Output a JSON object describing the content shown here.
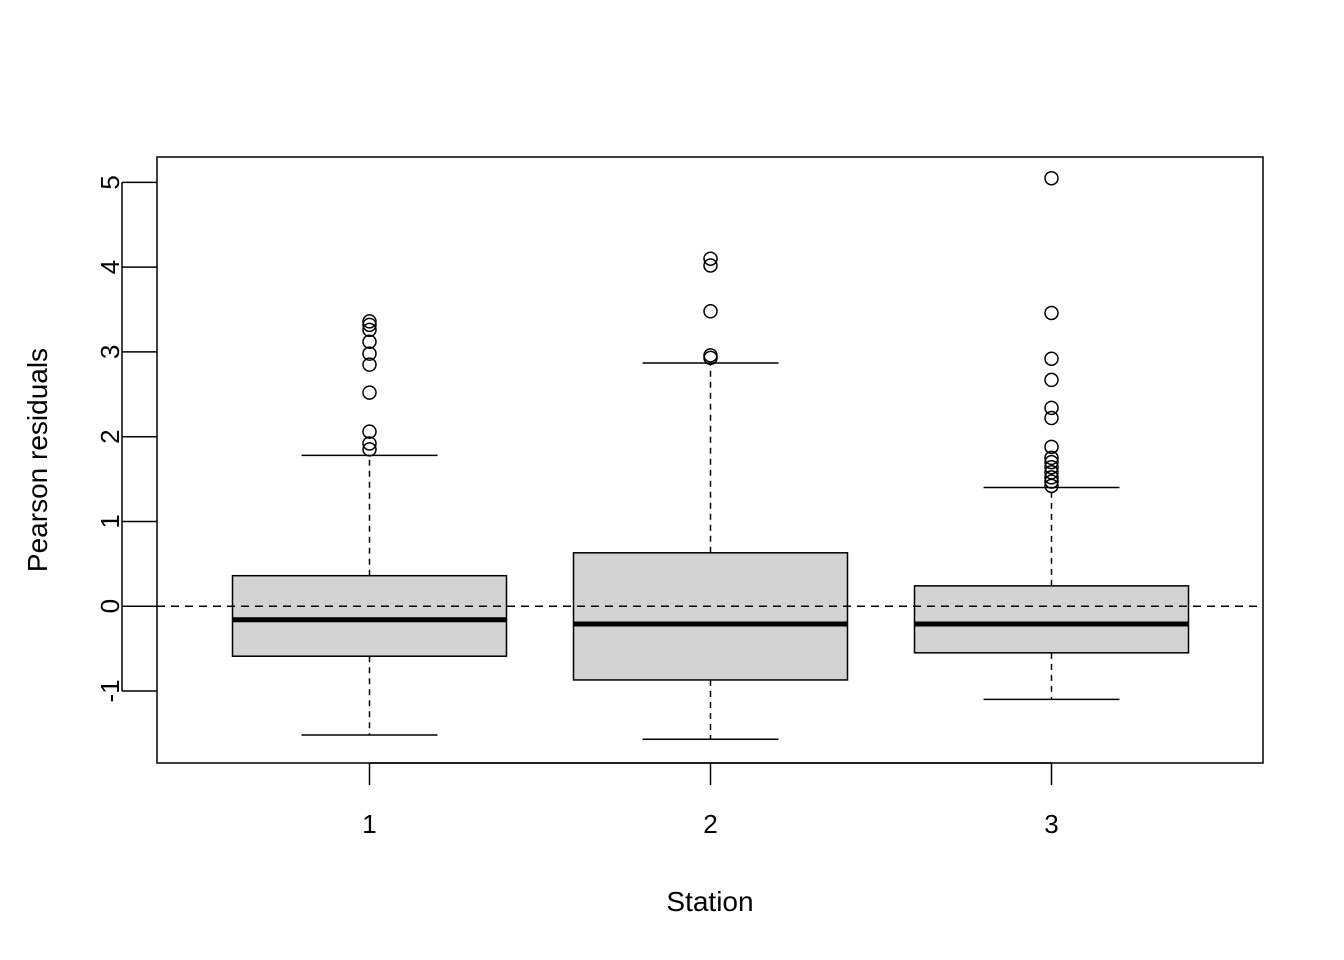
{
  "chart_data": {
    "type": "boxplot",
    "xlabel": "Station",
    "ylabel": "Pearson residuals",
    "ylim": [
      -1.85,
      5.3
    ],
    "yticks": [
      -1,
      0,
      1,
      2,
      3,
      4,
      5
    ],
    "reference_line": {
      "y": 0,
      "style": "dashed"
    },
    "box_fill": "#d3d3d3",
    "categories": [
      "1",
      "2",
      "3"
    ],
    "boxes": [
      {
        "label": "1",
        "whisker_low": -1.52,
        "q1": -0.59,
        "median": -0.16,
        "q3": 0.36,
        "whisker_high": 1.78,
        "outliers": [
          1.85,
          1.92,
          2.06,
          2.52,
          2.85,
          2.98,
          3.12,
          3.26,
          3.32,
          3.36
        ]
      },
      {
        "label": "2",
        "whisker_low": -1.57,
        "q1": -0.87,
        "median": -0.21,
        "q3": 0.63,
        "whisker_high": 2.87,
        "outliers": [
          2.93,
          2.96,
          3.48,
          4.02,
          4.1
        ]
      },
      {
        "label": "3",
        "whisker_low": -1.1,
        "q1": -0.55,
        "median": -0.21,
        "q3": 0.24,
        "whisker_high": 1.4,
        "outliers": [
          1.42,
          1.47,
          1.52,
          1.58,
          1.64,
          1.7,
          1.75,
          1.88,
          2.22,
          2.34,
          2.67,
          2.92,
          3.46,
          5.05
        ]
      }
    ]
  }
}
